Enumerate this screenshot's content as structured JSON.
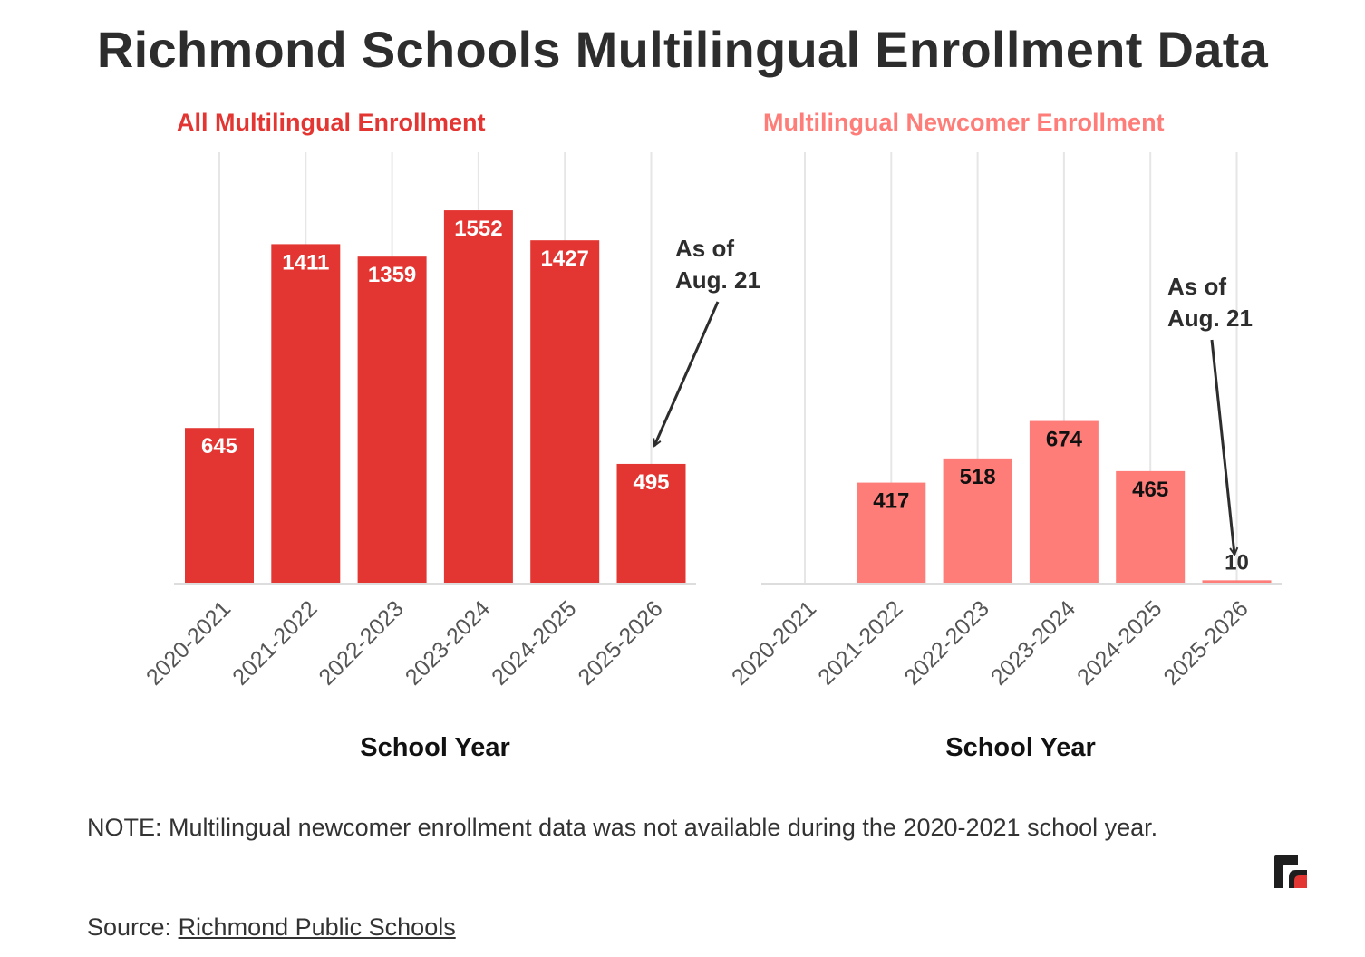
{
  "title": "Richmond Schools Multilingual Enrollment Data",
  "colors": {
    "left_bar": "#e33632",
    "right_bar": "#fe7d79",
    "left_title": "#e33632",
    "right_title": "#fe7d79",
    "text": "#2d2d2d",
    "grid": "#e6e6e6"
  },
  "chart_data": [
    {
      "type": "bar",
      "title": "All Multilingual Enrollment",
      "categories": [
        "2020-2021",
        "2021-2022",
        "2022-2023",
        "2023-2024",
        "2024-2025",
        "2025-2026"
      ],
      "values": [
        645,
        1411,
        1359,
        1552,
        1427,
        495
      ],
      "xlabel": "School Year",
      "ylabel": "",
      "ylim": [
        0,
        1760
      ],
      "grid": "vertical",
      "annotation": {
        "category": "2025-2026",
        "line1": "As of",
        "line2": "Aug. 21"
      }
    },
    {
      "type": "bar",
      "title": "Multilingual Newcomer Enrollment",
      "categories": [
        "2020-2021",
        "2021-2022",
        "2022-2023",
        "2023-2024",
        "2024-2025",
        "2025-2026"
      ],
      "values": [
        null,
        417,
        518,
        674,
        465,
        10
      ],
      "xlabel": "School Year",
      "ylabel": "",
      "ylim": [
        0,
        1760
      ],
      "grid": "vertical",
      "annotation": {
        "category": "2025-2026",
        "line1": "As of",
        "line2": "Aug. 21"
      }
    }
  ],
  "note": "NOTE: Multilingual newcomer enrollment data was not available during the 2020-2021 school year.",
  "source_prefix": "Source: ",
  "source_link": "Richmond Public Schools"
}
